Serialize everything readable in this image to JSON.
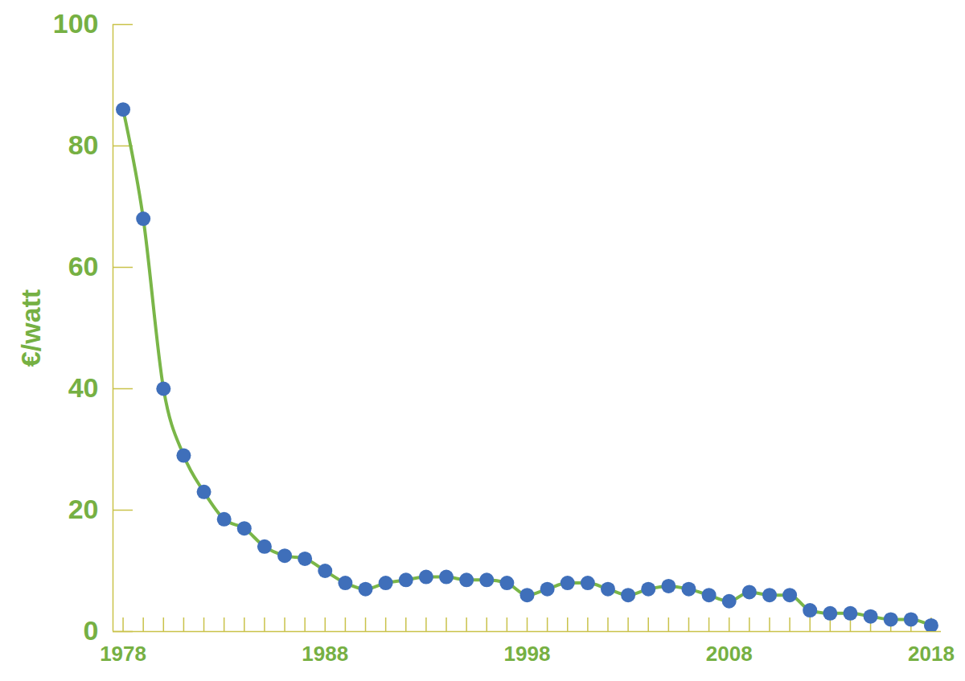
{
  "chart_data": {
    "type": "line",
    "y_label": "€/watt",
    "x": [
      1978,
      1979,
      1980,
      1981,
      1982,
      1983,
      1984,
      1985,
      1986,
      1987,
      1988,
      1989,
      1990,
      1991,
      1992,
      1993,
      1994,
      1995,
      1996,
      1997,
      1998,
      1999,
      2000,
      2001,
      2002,
      2003,
      2004,
      2005,
      2006,
      2007,
      2008,
      2009,
      2010,
      2011,
      2012,
      2013,
      2014,
      2015,
      2016,
      2017,
      2018
    ],
    "values": [
      86,
      68,
      40,
      29,
      23,
      18.5,
      17,
      14,
      12.5,
      12,
      10,
      8,
      7,
      8,
      8.5,
      9,
      9,
      8.5,
      8.5,
      8,
      6,
      7,
      8,
      8,
      7,
      6,
      7,
      7.5,
      7,
      6,
      5,
      6.5,
      6,
      6,
      3.5,
      3,
      3,
      2.5,
      2,
      2,
      1
    ],
    "color": "#7ab648",
    "marker": "circle",
    "xlim": [
      1977.5,
      2018.5
    ],
    "xticks": [
      1978,
      1988,
      1998,
      2008,
      2018
    ],
    "ylim": [
      0,
      100
    ],
    "yticks": [
      0,
      20,
      40,
      60,
      80,
      100
    ],
    "grid": false
  }
}
